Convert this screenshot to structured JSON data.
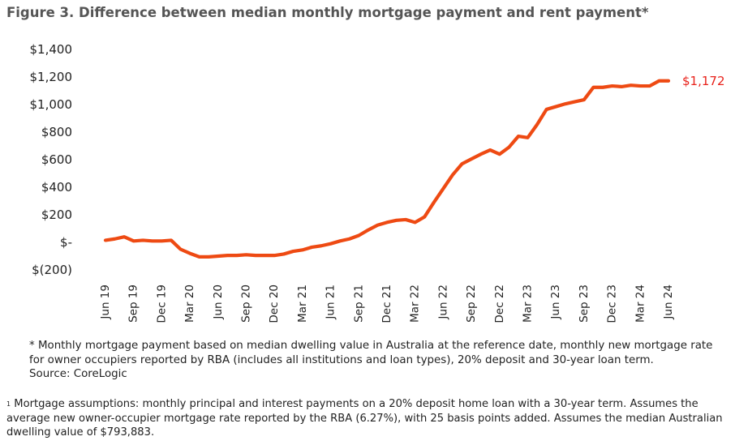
{
  "title": "Figure 3. Difference between median monthly mortgage payment and rent payment*",
  "notes": {
    "asterisk": "* Monthly mortgage payment based on median dwelling value in Australia at the reference date, monthly new mortgage rate for owner occupiers reported by RBA (includes all institutions and loan types), 20% deposit and 30-year loan term.",
    "source": "Source: CoreLogic",
    "footnote_marker": "1",
    "footnote": "Mortgage assumptions: monthly principal and interest payments on a 20% deposit home loan with a 30-year term. Assumes the average new owner-occupier mortgage rate reported by the RBA (6.27%), with 25 basis points added. Assumes the median Australian dwelling value of $793,883."
  },
  "colors": {
    "line": "#ee4a13",
    "end_label": "#e8221b",
    "title": "#555555"
  },
  "chart_data": {
    "type": "line",
    "ylim": [
      -200,
      1400
    ],
    "yticks": [
      -200,
      0,
      200,
      400,
      600,
      800,
      1000,
      1200,
      1400
    ],
    "ytick_labels": [
      "$(200)",
      "$-",
      "$200",
      "$400",
      "$600",
      "$800",
      "$1,000",
      "$1,200",
      "$1,400"
    ],
    "xtick_labels": [
      "Jun 19",
      "Sep 19",
      "Dec 19",
      "Mar 20",
      "Jun 20",
      "Sep 20",
      "Dec 20",
      "Mar 21",
      "Jun 21",
      "Sep 21",
      "Dec 21",
      "Mar 22",
      "Jun 22",
      "Sep 22",
      "Dec 22",
      "Mar 23",
      "Jun 23",
      "Sep 23",
      "Dec 23",
      "Mar 24",
      "Jun 24"
    ],
    "grid": false,
    "legend": "none",
    "end_label": "$1,172",
    "series": [
      {
        "x": [
          "Jun 19",
          "Jul 19",
          "Aug 19",
          "Sep 19",
          "Oct 19",
          "Nov 19",
          "Dec 19",
          "Jan 20",
          "Feb 20",
          "Mar 20",
          "Apr 20",
          "May 20",
          "Jun 20",
          "Jul 20",
          "Aug 20",
          "Sep 20",
          "Oct 20",
          "Nov 20",
          "Dec 20",
          "Jan 21",
          "Feb 21",
          "Mar 21",
          "Apr 21",
          "May 21",
          "Jun 21",
          "Jul 21",
          "Aug 21",
          "Sep 21",
          "Oct 21",
          "Nov 21",
          "Dec 21",
          "Jan 22",
          "Feb 22",
          "Mar 22",
          "Apr 22",
          "May 22",
          "Jun 22",
          "Jul 22",
          "Aug 22",
          "Sep 22",
          "Oct 22",
          "Nov 22",
          "Dec 22",
          "Jan 23",
          "Feb 23",
          "Mar 23",
          "Apr 23",
          "May 23",
          "Jun 23",
          "Jul 23",
          "Aug 23",
          "Sep 23",
          "Oct 23",
          "Nov 23",
          "Dec 23",
          "Jan 24",
          "Feb 24",
          "Mar 24",
          "Apr 24",
          "May 24",
          "Jun 24"
        ],
        "values": [
          15,
          25,
          40,
          10,
          15,
          10,
          10,
          15,
          -50,
          -80,
          -105,
          -105,
          -100,
          -95,
          -95,
          -90,
          -95,
          -95,
          -95,
          -85,
          -65,
          -55,
          -35,
          -25,
          -10,
          10,
          25,
          50,
          90,
          125,
          145,
          160,
          165,
          145,
          185,
          290,
          390,
          490,
          570,
          605,
          640,
          670,
          640,
          690,
          770,
          760,
          855,
          965,
          985,
          1005,
          1020,
          1035,
          1125,
          1125,
          1135,
          1130,
          1140,
          1135,
          1135,
          1172,
          1172
        ]
      }
    ]
  }
}
